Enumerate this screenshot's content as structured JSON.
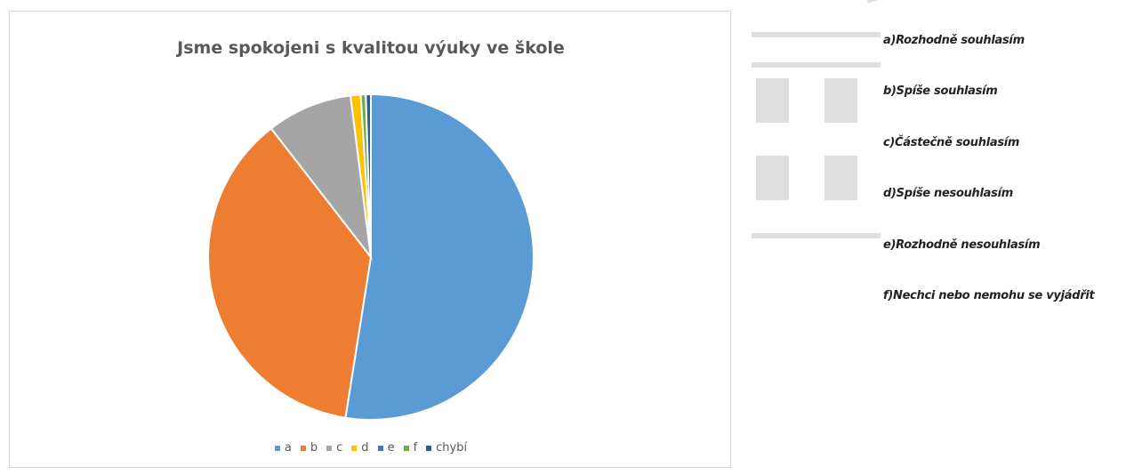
{
  "chart_data": {
    "type": "pie",
    "title": "Jsme spokojeni  s kvalitou výuky ve škole",
    "categories": [
      "a",
      "b",
      "c",
      "d",
      "e",
      "f",
      "chybí"
    ],
    "values": [
      52.5,
      37.0,
      8.5,
      1.0,
      0.0,
      0.5,
      0.5
    ],
    "colors": [
      "#5b9bd5",
      "#ed7d31",
      "#a5a5a5",
      "#ffc000",
      "#4472c4",
      "#70ad47",
      "#255e91"
    ],
    "legend_position": "bottom",
    "start_angle_deg": 0,
    "direction": "clockwise"
  },
  "legend_descriptions": [
    "a)Rozhodně souhlasím",
    "b)Spíše souhlasím",
    "c)Částečně souhlasím",
    "d)Spíše nesouhlasím",
    "e)Rozhodně nesouhlasím",
    "f)Nechci nebo nemohu se vyjádřit"
  ]
}
